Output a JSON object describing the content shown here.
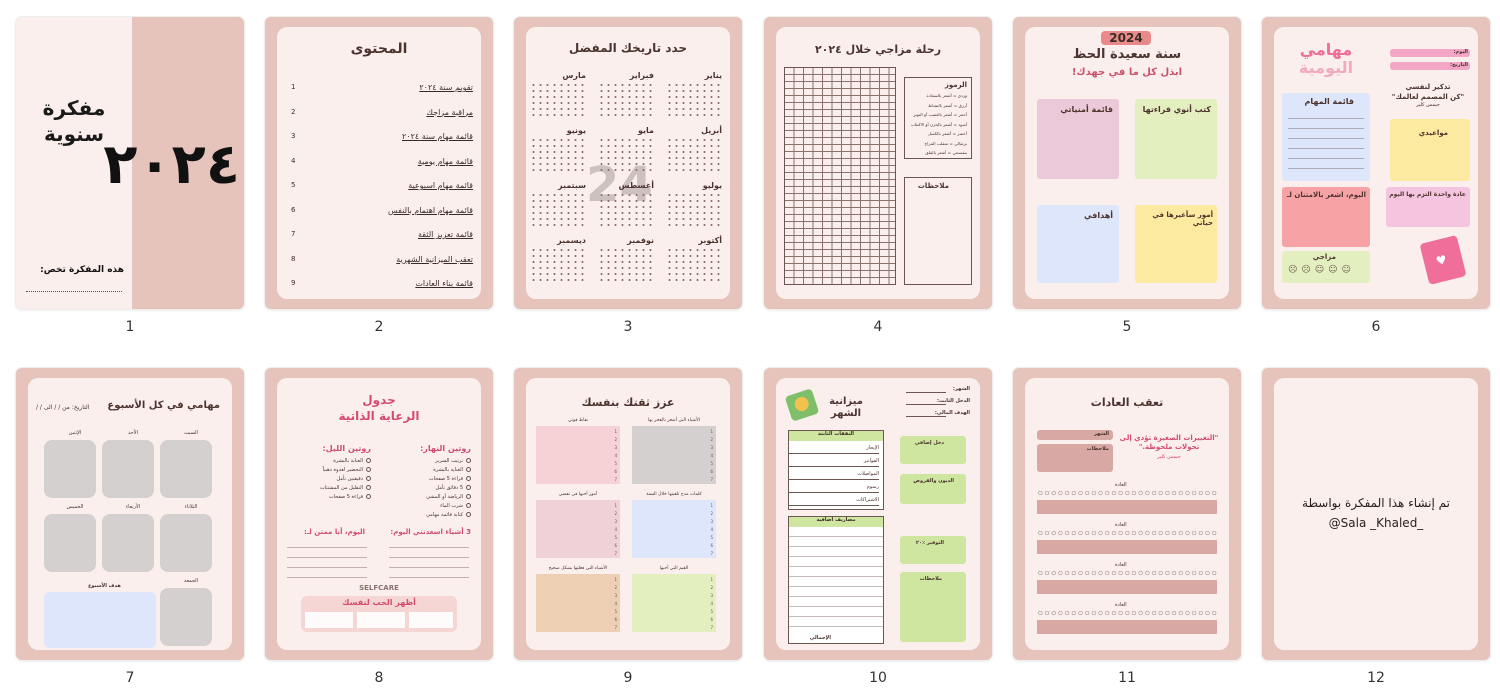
{
  "pages": [
    {
      "number": "1",
      "title_line1": "مفكرة",
      "title_line2": "سنوية",
      "year": "٢٠٢٤",
      "owner_label": "هذه المفكرة تخص:"
    },
    {
      "number": "2",
      "title": "المحتوى",
      "toc": [
        {
          "n": "1",
          "label": "تقويم سنة ٢٠٢٤"
        },
        {
          "n": "2",
          "label": "مراقبة مزاجك"
        },
        {
          "n": "3",
          "label": "قائمة مهام سنة ٢٠٢٤"
        },
        {
          "n": "4",
          "label": "قائمة مهام يومية"
        },
        {
          "n": "5",
          "label": "قائمة مهام اسبوعية"
        },
        {
          "n": "6",
          "label": "قائمة مهام اهتمام بالنفس"
        },
        {
          "n": "7",
          "label": "قائمة تعزيز الثقة"
        },
        {
          "n": "8",
          "label": "تعقب الميزانية الشهرية"
        },
        {
          "n": "9",
          "label": "قائمة بناء العادات"
        }
      ]
    },
    {
      "number": "3",
      "title": "حدد تاريخك المفضل",
      "months": [
        "يناير",
        "فبراير",
        "مارس",
        "أبريل",
        "مايو",
        "يونيو",
        "يوليو",
        "أغسطس",
        "سبتمبر",
        "أكتوبر",
        "نوفمبر",
        "ديسمبر"
      ],
      "watermark": "24"
    },
    {
      "number": "4",
      "title": "رحلة مزاجي خلال ٢٠٢٤",
      "legend_title": "الرموز",
      "legend": [
        "وردي = أشعر بالسعادة",
        "أزرق = أشعر بالنشاط",
        "أحمر = أشعر بالغضب أو التوتر",
        "أسود = أشعر بالحزن أو الاكتئاب",
        "أخضر = أشعر بالكسل",
        "برتقالي = متقلب المزاج",
        "بنفسجي = أشعر بالقلق"
      ],
      "notes_label": "ملاحظات"
    },
    {
      "number": "5",
      "year_badge": "2024",
      "title": "سنة سعيدة الحظ",
      "subtitle": "ابذل كل ما في جهدك!",
      "boxes": [
        "كتب أنوي قراءتها",
        "قائمة أمنياتي",
        "أمور سأغيرها في حياتي",
        "أهدافي"
      ]
    },
    {
      "number": "6",
      "title_line1": "مهامي",
      "title_line2": "اليومية",
      "day_label": "اليوم:",
      "date_label": "التاريخ:",
      "reminder_title": "تذكير لنفسي",
      "reminder_quote": "\"كن المصمم لعالمك\"",
      "reminder_author": "جيمس كلير",
      "tasks_label": "قائمة المهام",
      "appointments_label": "مواعيدي",
      "grateful_label": "اليوم، اشعر بالامتنان لـ",
      "habit_label": "عادة واحدة التزم بها اليوم",
      "mood_label": "مزاجي"
    },
    {
      "number": "7",
      "title": "مهامي في كل الأسبوع",
      "date_label": "التاريخ: من / / الى / /",
      "days": [
        "السبت",
        "الأحد",
        "الإثنين",
        "الثلاثاء",
        "الأربعاء",
        "الخميس",
        "الجمعة"
      ],
      "goal_label": "هدف الأسبوع"
    },
    {
      "number": "8",
      "title_line1": "جدول",
      "title_line2": "الرعاية الذاتية",
      "morning_label": "روتين النهار:",
      "night_label": "روتين الليل:",
      "morning_items": [
        "ترتيب السرير",
        "العناية بالبشرة",
        "قراءة 5 صفحات",
        "5 دقائق تأمل",
        "الرياضة أو المشي",
        "شرب الماء",
        "كتابة قائمة مهامي"
      ],
      "night_items": [
        "العناية بالبشرة",
        "التحضير لغدوة ذهنياً",
        "دقيقتين تأمل",
        "التقليل من المشتتات",
        "قراءة 5 صفحات"
      ],
      "happy_label": "3 أشياء اسعدتني اليوم:",
      "thankful_label": "اليوم، أنا ممتن لـ:",
      "selfcare_label": "SELFCARE",
      "love_label": "أظهر الحب لنفسك"
    },
    {
      "number": "9",
      "title": "عزز ثقتك بنفسك",
      "boxes": [
        "الأشياء التي أشعر بالفخر بها",
        "نقاط قوتي",
        "كلمات مدح تلقيتها خلال السنة",
        "أمور أحبها في نفسي",
        "القيم التي أحبها",
        "الأشياء التي فعلتها بشكل صحيح"
      ]
    },
    {
      "number": "10",
      "title_line1": "ميزانية",
      "title_line2": "الشهر",
      "month_label": "الشهر:",
      "income_label": "الدخل الثابت:",
      "target_label": "الهدف المالي:",
      "fixed_label": "النفقات الثابتة",
      "fixed_items": [
        "الإيجار",
        "الفواتير",
        "المواصلات",
        "رسوم",
        "الاشتراكات"
      ],
      "extra_label": "مصاريف اضافية",
      "total_label": "الإجمالي",
      "total_income_label": "دخل إضافي",
      "debts_label": "الديون والقروض",
      "savings_label": "التوفير ٪٢٠",
      "notes_label": "ملاحظات"
    },
    {
      "number": "11",
      "title": "تعقب العادات",
      "month_label": "الشهر",
      "notes_label": "ملاحظات",
      "quote": "\"التغييرات الصغيرة تؤدي إلى تحولات ملحوظة.\"",
      "quote_author": "جيمس كلير",
      "habit_label": "العادة"
    },
    {
      "number": "12",
      "credit_line1": "تم إنشاء هذا المفكرة بواسطة",
      "credit_line2": "@Sala _Khaled_"
    }
  ],
  "colors": {
    "frame": "#e6c4bb",
    "paper": "#fbefed",
    "pink": "#f0b9c2",
    "green": "#e4efbf",
    "yellow": "#fbeaa0",
    "blue": "#dde6fb",
    "lilac": "#ecc9d8",
    "grey": "#d4d0cf"
  }
}
